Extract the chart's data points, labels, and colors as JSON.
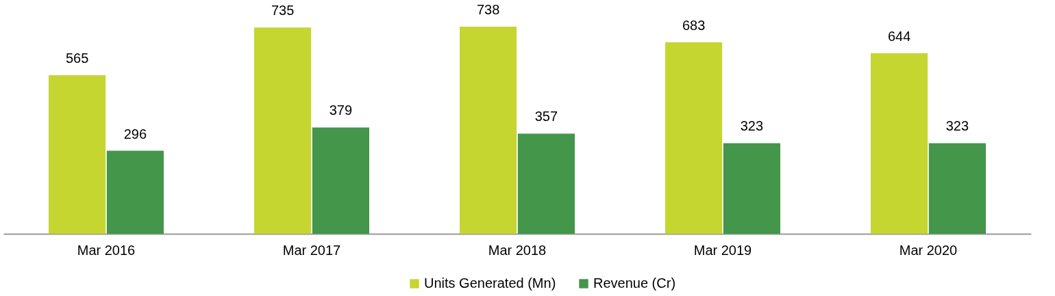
{
  "chart_data": {
    "type": "bar",
    "categories": [
      "Mar 2016",
      "Mar 2017",
      "Mar 2018",
      "Mar 2019",
      "Mar 2020"
    ],
    "series": [
      {
        "name": "Units Generated (Mn)",
        "color": "#c5d631",
        "values": [
          565,
          735,
          738,
          683,
          644
        ]
      },
      {
        "name": "Revenue (Cr)",
        "color": "#43964a",
        "values": [
          296,
          379,
          357,
          323,
          323
        ]
      }
    ],
    "data_labels": true,
    "legend": "bottom"
  }
}
